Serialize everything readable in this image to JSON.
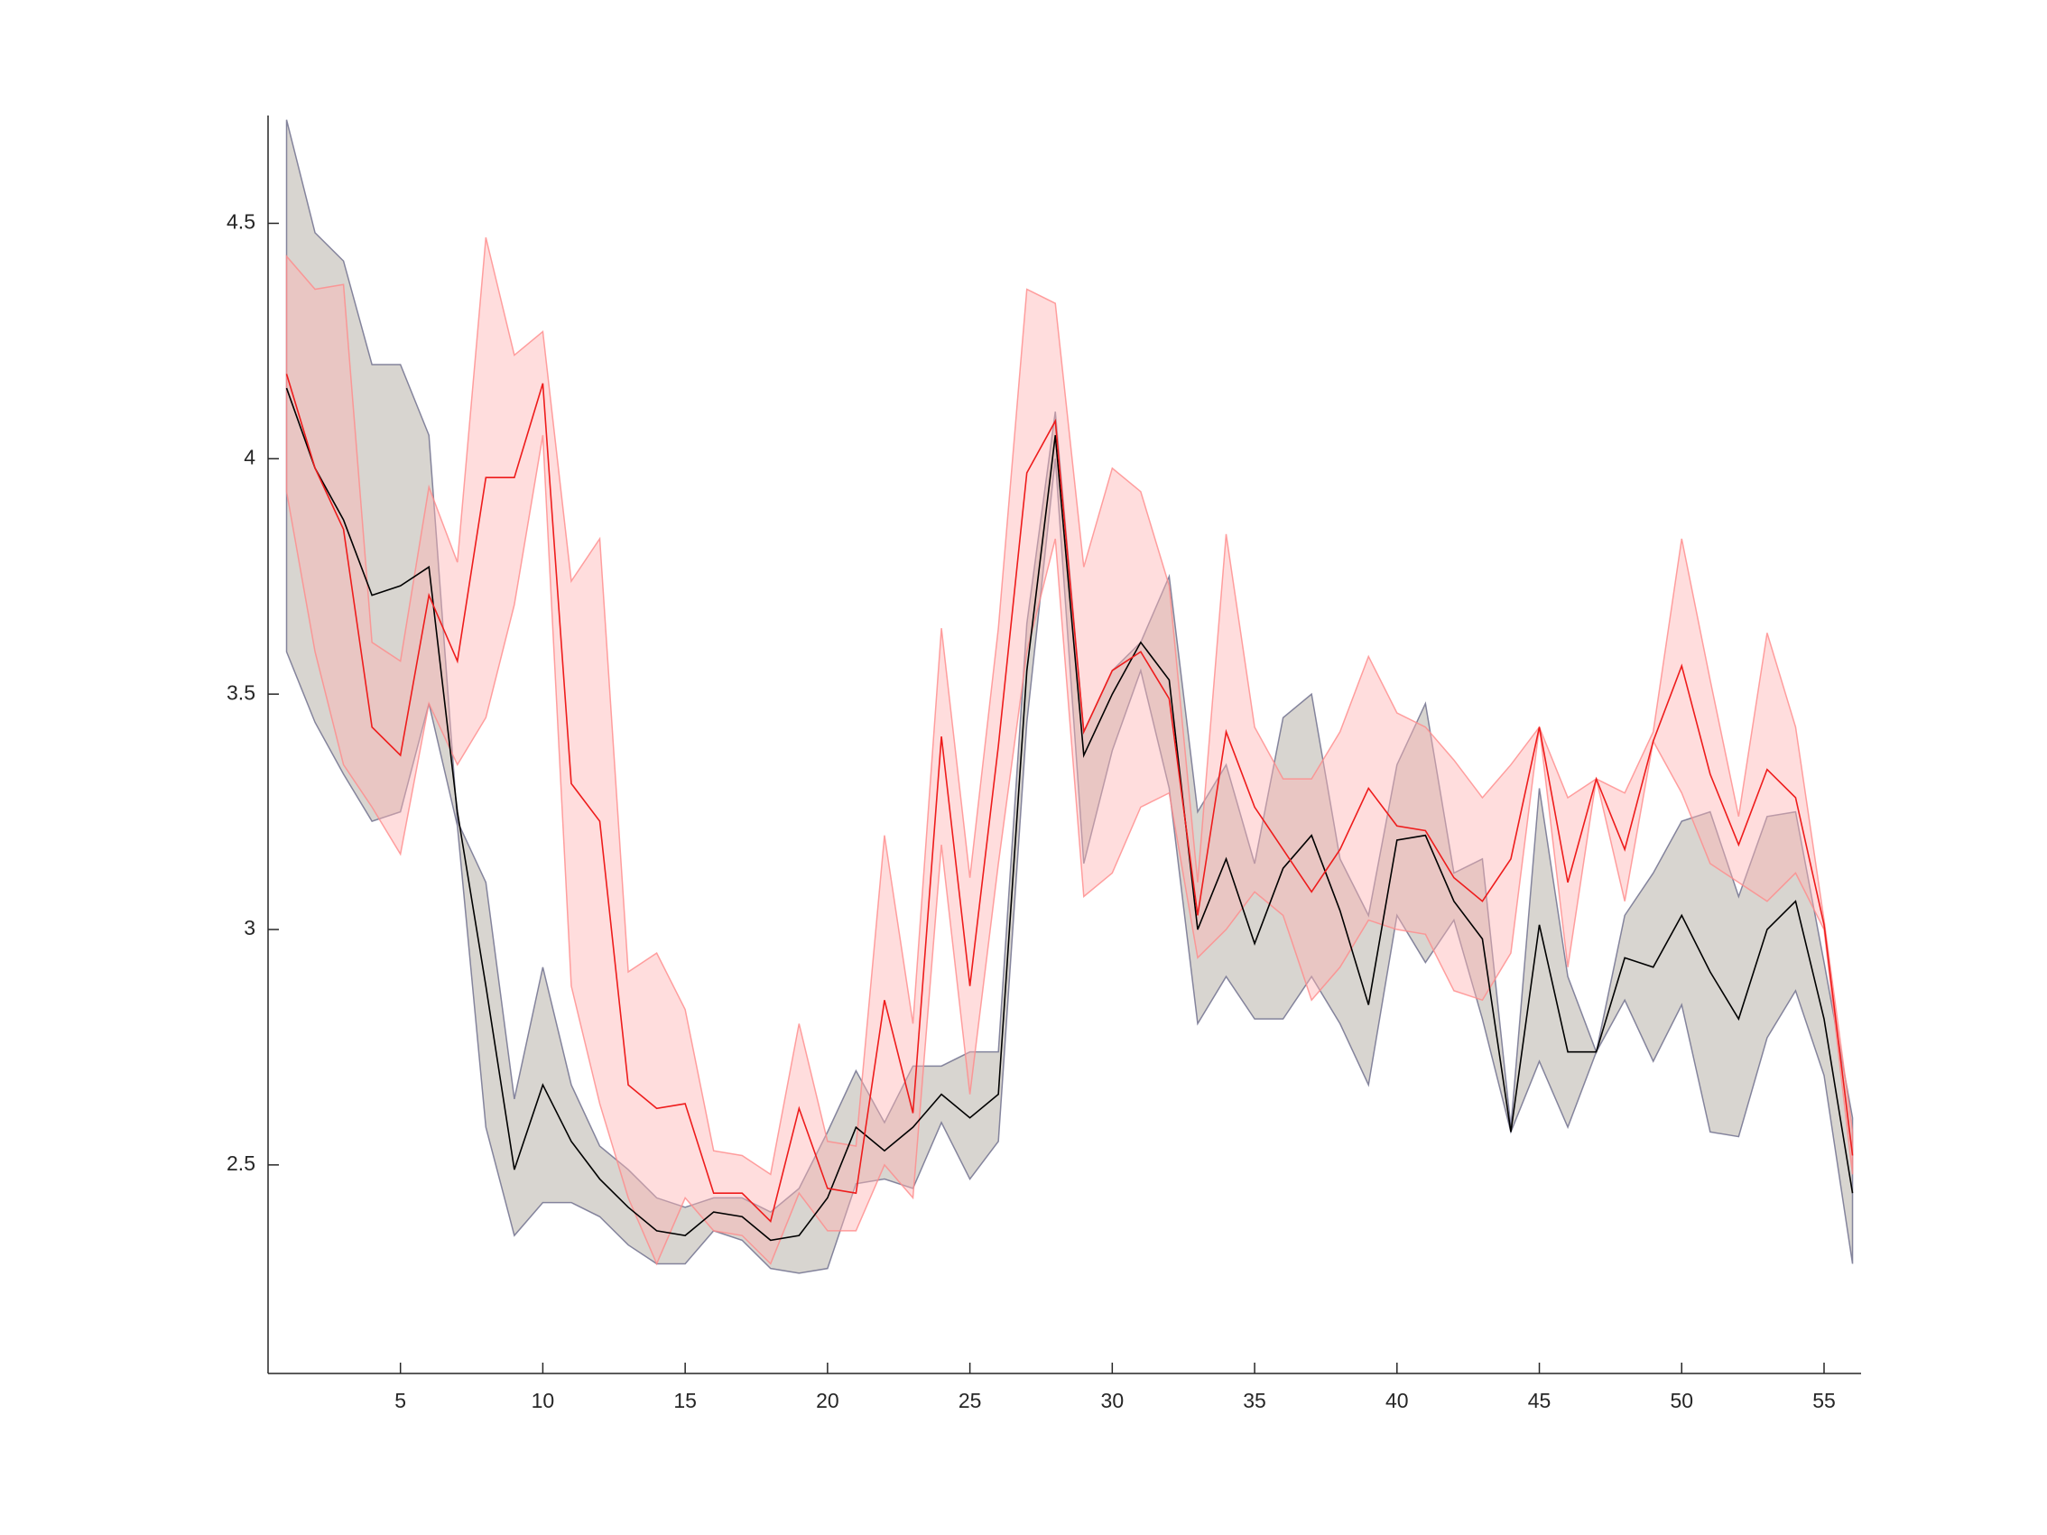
{
  "chart_data": {
    "type": "line",
    "x": [
      1,
      2,
      3,
      4,
      5,
      6,
      7,
      8,
      9,
      10,
      11,
      12,
      13,
      14,
      15,
      16,
      17,
      18,
      19,
      20,
      21,
      22,
      23,
      24,
      25,
      26,
      27,
      28,
      29,
      30,
      31,
      32,
      33,
      34,
      35,
      36,
      37,
      38,
      39,
      40,
      41,
      42,
      43,
      44,
      45,
      46,
      47,
      48,
      49,
      50,
      51,
      52,
      53,
      54,
      55,
      56
    ],
    "xlim": [
      0.35,
      56.3
    ],
    "xticks": [
      5,
      10,
      15,
      20,
      25,
      30,
      35,
      40,
      45,
      50,
      55
    ],
    "ylim": [
      2.057,
      4.729
    ],
    "yticks": [
      2.5,
      3,
      3.5,
      4,
      4.5
    ],
    "series": [
      {
        "color": "#000000",
        "fill": "#a8a196",
        "edge": "#6a6a8a",
        "values": [
          4.15,
          3.98,
          3.87,
          3.71,
          3.73,
          3.77,
          3.25,
          2.88,
          2.49,
          2.67,
          2.55,
          2.47,
          2.41,
          2.36,
          2.35,
          2.4,
          2.39,
          2.34,
          2.35,
          2.43,
          2.58,
          2.53,
          2.58,
          2.65,
          2.6,
          2.65,
          3.55,
          4.05,
          3.37,
          3.5,
          3.61,
          3.53,
          3.0,
          3.15,
          2.97,
          3.13,
          3.2,
          3.04,
          2.84,
          3.19,
          3.2,
          3.06,
          2.98,
          2.57,
          3.01,
          2.74,
          2.74,
          2.94,
          2.92,
          3.03,
          2.91,
          2.81,
          3.0,
          3.06,
          2.81,
          2.44
        ],
        "upper": [
          4.72,
          4.48,
          4.42,
          4.2,
          4.2,
          4.05,
          3.23,
          3.1,
          2.64,
          2.92,
          2.67,
          2.54,
          2.49,
          2.43,
          2.41,
          2.43,
          2.43,
          2.4,
          2.45,
          2.57,
          2.7,
          2.59,
          2.71,
          2.71,
          2.74,
          2.74,
          3.65,
          4.1,
          3.42,
          3.55,
          3.61,
          3.75,
          3.25,
          3.35,
          3.14,
          3.45,
          3.5,
          3.15,
          3.03,
          3.35,
          3.48,
          3.12,
          3.15,
          2.58,
          3.3,
          2.9,
          2.74,
          3.03,
          3.12,
          3.23,
          3.25,
          3.07,
          3.24,
          3.25,
          2.93,
          2.6
        ],
        "lower": [
          3.59,
          3.44,
          3.33,
          3.23,
          3.25,
          3.48,
          3.22,
          2.58,
          2.35,
          2.42,
          2.42,
          2.39,
          2.33,
          2.29,
          2.29,
          2.36,
          2.34,
          2.28,
          2.27,
          2.28,
          2.46,
          2.47,
          2.45,
          2.59,
          2.47,
          2.55,
          3.44,
          4.0,
          3.14,
          3.38,
          3.55,
          3.3,
          2.8,
          2.9,
          2.81,
          2.81,
          2.9,
          2.8,
          2.67,
          3.03,
          2.93,
          3.02,
          2.81,
          2.57,
          2.72,
          2.58,
          2.74,
          2.85,
          2.72,
          2.84,
          2.57,
          2.56,
          2.77,
          2.87,
          2.69,
          2.29
        ]
      },
      {
        "color": "#ee1c1c",
        "fill": "#ffb3b3",
        "edge": "#ff8a8a",
        "values": [
          4.18,
          3.98,
          3.85,
          3.43,
          3.37,
          3.71,
          3.57,
          3.96,
          3.96,
          4.16,
          3.31,
          3.23,
          2.67,
          2.62,
          2.63,
          2.44,
          2.44,
          2.38,
          2.62,
          2.45,
          2.44,
          2.85,
          2.61,
          3.41,
          2.88,
          3.39,
          3.97,
          4.08,
          3.42,
          3.55,
          3.59,
          3.49,
          3.03,
          3.42,
          3.26,
          3.17,
          3.08,
          3.17,
          3.3,
          3.22,
          3.21,
          3.11,
          3.06,
          3.15,
          3.43,
          3.1,
          3.32,
          3.17,
          3.4,
          3.56,
          3.33,
          3.18,
          3.34,
          3.28,
          3.01,
          2.52
        ],
        "upper": [
          4.43,
          4.36,
          4.37,
          3.61,
          3.57,
          3.94,
          3.78,
          4.47,
          4.22,
          4.27,
          3.74,
          3.83,
          2.91,
          2.95,
          2.83,
          2.53,
          2.52,
          2.48,
          2.8,
          2.55,
          2.54,
          3.2,
          2.8,
          3.64,
          3.11,
          3.64,
          4.36,
          4.33,
          3.77,
          3.98,
          3.93,
          3.73,
          3.1,
          3.84,
          3.43,
          3.32,
          3.32,
          3.42,
          3.58,
          3.46,
          3.43,
          3.36,
          3.28,
          3.35,
          3.43,
          3.28,
          3.32,
          3.29,
          3.42,
          3.83,
          3.53,
          3.24,
          3.63,
          3.43,
          3.02,
          2.57
        ],
        "lower": [
          3.93,
          3.59,
          3.35,
          3.26,
          3.16,
          3.48,
          3.35,
          3.45,
          3.69,
          4.05,
          2.88,
          2.63,
          2.43,
          2.29,
          2.43,
          2.36,
          2.35,
          2.29,
          2.44,
          2.36,
          2.36,
          2.5,
          2.43,
          3.18,
          2.65,
          3.14,
          3.59,
          3.83,
          3.07,
          3.12,
          3.26,
          3.29,
          2.94,
          3.0,
          3.08,
          3.03,
          2.85,
          2.92,
          3.02,
          3.0,
          2.99,
          2.87,
          2.85,
          2.95,
          3.43,
          2.92,
          3.32,
          3.06,
          3.4,
          3.29,
          3.14,
          3.1,
          3.06,
          3.12,
          3.0,
          2.48
        ]
      }
    ]
  }
}
